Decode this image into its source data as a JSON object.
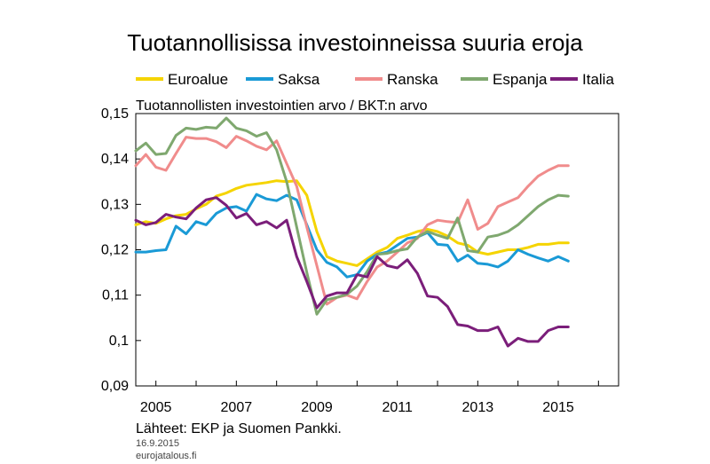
{
  "chart_data": {
    "type": "line",
    "title": "Tuotannollisissa investoinneissa suuria eroja",
    "ylabel": "Tuotannollisten investointien arvo / BKT:n arvo",
    "xlabel": "",
    "xlim": [
      2004.5,
      2016.5
    ],
    "ylim": [
      0.09,
      0.15
    ],
    "x_ticks": [
      "2005",
      "2007",
      "2009",
      "2011",
      "2013",
      "2015"
    ],
    "y_ticks": [
      "0,09",
      "0,1",
      "0,11",
      "0,12",
      "0,13",
      "0,14",
      "0,15"
    ],
    "x_tick_values": [
      2005,
      2007,
      2009,
      2011,
      2013,
      2015
    ],
    "y_tick_values": [
      0.09,
      0.1,
      0.11,
      0.12,
      0.13,
      0.14,
      0.15
    ],
    "x": [
      2004.5,
      2004.75,
      2005.0,
      2005.25,
      2005.5,
      2005.75,
      2006.0,
      2006.25,
      2006.5,
      2006.75,
      2007.0,
      2007.25,
      2007.5,
      2007.75,
      2008.0,
      2008.25,
      2008.5,
      2008.75,
      2009.0,
      2009.25,
      2009.5,
      2009.75,
      2010.0,
      2010.25,
      2010.5,
      2010.75,
      2011.0,
      2011.25,
      2011.5,
      2011.75,
      2012.0,
      2012.25,
      2012.5,
      2012.75,
      2013.0,
      2013.25,
      2013.5,
      2013.75,
      2014.0,
      2014.25,
      2014.5,
      2014.75,
      2015.0,
      2015.25
    ],
    "series": [
      {
        "name": "Euroalue",
        "color": "#f5d400",
        "values": [
          0.1255,
          0.1262,
          0.1258,
          0.1268,
          0.1275,
          0.1278,
          0.129,
          0.13,
          0.1318,
          0.1325,
          0.1335,
          0.1342,
          0.1345,
          0.1348,
          0.1352,
          0.135,
          0.1352,
          0.132,
          0.124,
          0.1185,
          0.1175,
          0.117,
          0.1165,
          0.118,
          0.1195,
          0.1205,
          0.1225,
          0.1232,
          0.124,
          0.1245,
          0.124,
          0.123,
          0.1215,
          0.121,
          0.1195,
          0.119,
          0.1195,
          0.12,
          0.12,
          0.1205,
          0.1212,
          0.1212,
          0.1215,
          0.1215
        ]
      },
      {
        "name": "Saksa",
        "color": "#1a9ad6",
        "values": [
          0.1195,
          0.1195,
          0.1198,
          0.12,
          0.1252,
          0.1235,
          0.1262,
          0.1255,
          0.128,
          0.1292,
          0.1295,
          0.1285,
          0.1322,
          0.1312,
          0.1308,
          0.132,
          0.131,
          0.1255,
          0.12,
          0.1172,
          0.1162,
          0.114,
          0.1145,
          0.1175,
          0.119,
          0.1195,
          0.121,
          0.1225,
          0.1228,
          0.1238,
          0.1212,
          0.121,
          0.1175,
          0.1188,
          0.117,
          0.1168,
          0.1162,
          0.1175,
          0.12,
          0.119,
          0.1182,
          0.1175,
          0.1185,
          0.1175
        ]
      },
      {
        "name": "Ranska",
        "color": "#f08c8c",
        "values": [
          0.1385,
          0.141,
          0.1382,
          0.1375,
          0.1412,
          0.1448,
          0.1445,
          0.1445,
          0.1438,
          0.1425,
          0.145,
          0.144,
          0.1428,
          0.142,
          0.144,
          0.139,
          0.134,
          0.125,
          0.1165,
          0.108,
          0.1095,
          0.11,
          0.1092,
          0.113,
          0.1162,
          0.1175,
          0.1195,
          0.1215,
          0.1225,
          0.1255,
          0.1265,
          0.1262,
          0.126,
          0.131,
          0.1245,
          0.1258,
          0.1295,
          0.1305,
          0.1315,
          0.134,
          0.1362,
          0.1375,
          0.1385,
          0.1385
        ]
      },
      {
        "name": "Espanja",
        "color": "#7fa86f",
        "values": [
          0.1418,
          0.1435,
          0.141,
          0.1412,
          0.1452,
          0.1468,
          0.1465,
          0.147,
          0.1468,
          0.149,
          0.1468,
          0.1462,
          0.145,
          0.1458,
          0.142,
          0.135,
          0.125,
          0.115,
          0.1058,
          0.109,
          0.1095,
          0.1102,
          0.112,
          0.1152,
          0.119,
          0.1192,
          0.1198,
          0.1202,
          0.1228,
          0.124,
          0.1232,
          0.1225,
          0.127,
          0.1198,
          0.1195,
          0.1228,
          0.1232,
          0.124,
          0.1255,
          0.1275,
          0.1295,
          0.131,
          0.132,
          0.1318
        ]
      },
      {
        "name": "Italia",
        "color": "#7b1e7a",
        "values": [
          0.1265,
          0.1255,
          0.126,
          0.1278,
          0.1272,
          0.1268,
          0.1292,
          0.131,
          0.1315,
          0.1298,
          0.127,
          0.128,
          0.1255,
          0.1262,
          0.1248,
          0.1265,
          0.1185,
          0.113,
          0.1072,
          0.1098,
          0.1105,
          0.1105,
          0.1145,
          0.114,
          0.1185,
          0.1165,
          0.116,
          0.1178,
          0.1148,
          0.1098,
          0.1095,
          0.1075,
          0.1035,
          0.1032,
          0.1022,
          0.1022,
          0.103,
          0.0988,
          0.1005,
          0.0998,
          0.0998,
          0.1022,
          0.103,
          0.103
        ]
      }
    ],
    "legend_position": "top"
  },
  "source_text": "Lähteet: EKP ja Suomen Pankki.",
  "date_text": "16.9.2015",
  "site_text": "eurojatalous.fi"
}
